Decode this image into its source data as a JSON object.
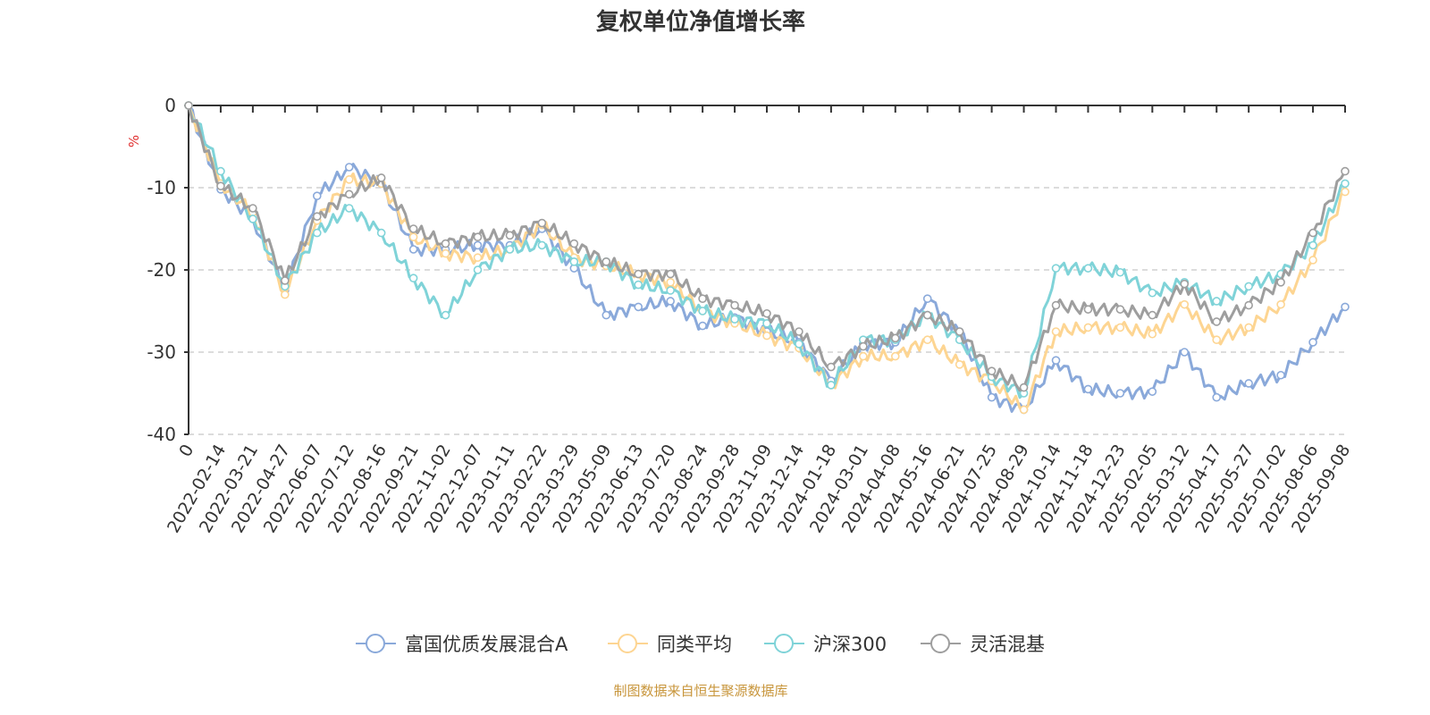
{
  "title": "复权单位净值增长率",
  "source": "制图数据来自恒生聚源数据库",
  "chart_data": {
    "type": "line",
    "title": "复权单位净值增长率",
    "ylabel": "%",
    "ylim": [
      -40,
      0
    ],
    "yticks": [
      "0",
      "-10",
      "-20",
      "-30",
      "-40"
    ],
    "ytick_values": [
      0,
      -10,
      -20,
      -30,
      -40
    ],
    "grid": "horizontal dashed",
    "legend": "bottom",
    "categories": [
      "0",
      "2022-02-14",
      "2022-03-21",
      "2022-04-27",
      "2022-06-07",
      "2022-07-12",
      "2022-08-16",
      "2022-09-21",
      "2022-11-02",
      "2022-12-07",
      "2023-01-11",
      "2023-02-22",
      "2023-03-29",
      "2023-05-09",
      "2023-06-13",
      "2023-07-20",
      "2023-08-24",
      "2023-09-28",
      "2023-11-09",
      "2023-12-14",
      "2024-01-18",
      "2024-03-01",
      "2024-04-08",
      "2024-05-16",
      "2024-06-21",
      "2024-07-25",
      "2024-08-29",
      "2024-10-14",
      "2024-11-18",
      "2024-12-23",
      "2025-02-05",
      "2025-03-12",
      "2025-04-17",
      "2025-05-27",
      "2025-07-02",
      "2025-08-06",
      "2025-09-08"
    ],
    "series": [
      {
        "name": "富国优质发展混合A",
        "color": "#8aa9da",
        "values": [
          0,
          -10.2,
          -13.8,
          -22.5,
          -11,
          -7.5,
          -9.5,
          -17.5,
          -17.5,
          -17,
          -17,
          -15,
          -19.8,
          -25.5,
          -24.5,
          -23.8,
          -26.8,
          -25.8,
          -27.5,
          -28.8,
          -33.5,
          -29,
          -28.8,
          -23.5,
          -27.5,
          -35.5,
          -37,
          -31,
          -34.5,
          -35,
          -34.8,
          -30,
          -35.5,
          -33.8,
          -32.8,
          -28.8,
          -24.5
        ]
      },
      {
        "name": "同类平均",
        "color": "#fdd592",
        "values": [
          0,
          -9.5,
          -13,
          -23,
          -14,
          -9,
          -9.5,
          -16,
          -18,
          -18.5,
          -17.5,
          -14.5,
          -18.5,
          -19.5,
          -20.5,
          -21.5,
          -25,
          -26.5,
          -28,
          -29.5,
          -34,
          -30.5,
          -30.5,
          -28.5,
          -31.5,
          -33.5,
          -37,
          -27.5,
          -27,
          -27,
          -27.8,
          -24.2,
          -28.5,
          -27,
          -24.2,
          -18.8,
          -10.5
        ]
      },
      {
        "name": "沪深300",
        "color": "#7fd3d8",
        "values": [
          0,
          -8,
          -13.8,
          -22,
          -15.5,
          -12.5,
          -15.5,
          -21,
          -25.5,
          -20,
          -17.5,
          -17,
          -19,
          -19,
          -21.8,
          -22.5,
          -25,
          -26,
          -26.5,
          -29,
          -34,
          -28.5,
          -28.5,
          -25.5,
          -28.5,
          -33,
          -35,
          -19.8,
          -19.8,
          -20.3,
          -22.8,
          -21.5,
          -23.8,
          -22,
          -20.5,
          -17,
          -9.5
        ]
      },
      {
        "name": "灵活混基",
        "color": "#9e9e9e",
        "values": [
          0,
          -9.8,
          -12.5,
          -21.3,
          -13.5,
          -10.8,
          -8.8,
          -15,
          -16.8,
          -16,
          -15.8,
          -14.3,
          -16.8,
          -19,
          -20.5,
          -20.5,
          -23.5,
          -24.3,
          -25.3,
          -27.5,
          -31.8,
          -29.3,
          -28.3,
          -25.5,
          -27.5,
          -32.3,
          -34.3,
          -24.3,
          -24.8,
          -24.8,
          -25.5,
          -21.7,
          -26.3,
          -24.3,
          -21.5,
          -15.5,
          -8
        ]
      }
    ]
  }
}
